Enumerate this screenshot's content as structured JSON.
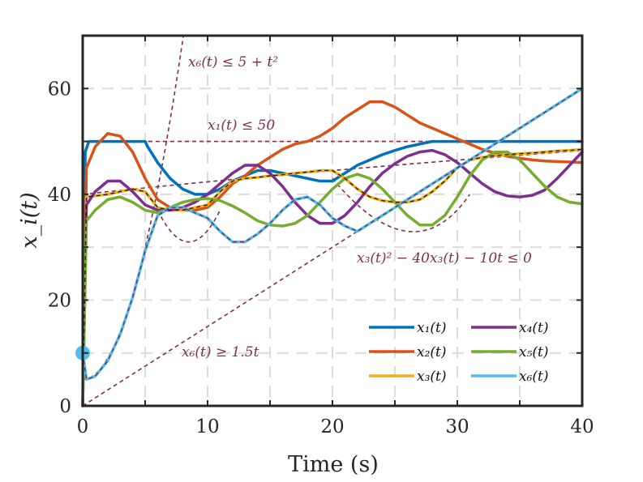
{
  "chart_data": {
    "type": "line",
    "xlabel": "Time (s)",
    "ylabel": "x_i(t)",
    "xlim": [
      0,
      40
    ],
    "ylim": [
      0,
      70
    ],
    "xticks": [
      0,
      10,
      20,
      30,
      40
    ],
    "yticks": [
      0,
      20,
      40,
      60
    ],
    "grid": true,
    "legend_position": "bottom-right",
    "initial_marker": {
      "x": 0,
      "y": 10,
      "color": "#4DBEEE"
    },
    "series": [
      {
        "name": "x₁(t)",
        "color": "#0072BD",
        "x": [
          0,
          0.2,
          0.5,
          1,
          2,
          3,
          4,
          5,
          5.2,
          6,
          7,
          8,
          9,
          10,
          11,
          12,
          13,
          14,
          15,
          16,
          17,
          18,
          19,
          20,
          21,
          22,
          23,
          24,
          25,
          26,
          27,
          28,
          29,
          30,
          31,
          32,
          33,
          34,
          35,
          36,
          37,
          38,
          39,
          40
        ],
        "values": [
          0,
          48,
          50,
          50,
          50,
          50,
          50,
          50,
          49,
          46,
          43,
          41,
          40,
          40,
          41,
          42.5,
          43.5,
          44.5,
          44.5,
          44,
          43.5,
          43,
          42.5,
          42.5,
          44,
          45.5,
          46.5,
          47.5,
          48.3,
          49,
          49.5,
          50,
          50,
          50,
          50,
          50,
          50,
          50,
          50,
          50,
          50,
          50,
          50,
          50
        ]
      },
      {
        "name": "x₂(t)",
        "color": "#D95319",
        "x": [
          0,
          0.3,
          1,
          2,
          3,
          4,
          5,
          6,
          7,
          8,
          9,
          10,
          11,
          12,
          13,
          14,
          15,
          16,
          17,
          18,
          19,
          20,
          21,
          22,
          23,
          24,
          25,
          26,
          27,
          28,
          29,
          30,
          31,
          32,
          33,
          34,
          35,
          36,
          37,
          38,
          39,
          40
        ],
        "values": [
          0,
          45,
          49,
          51.5,
          51,
          48,
          43,
          39,
          37.5,
          37,
          37,
          37.5,
          39.5,
          42,
          43.5,
          45.5,
          47,
          48.5,
          49.5,
          50,
          51,
          52.5,
          54.5,
          56,
          57.5,
          57.5,
          56.5,
          55,
          53.5,
          52.5,
          51.5,
          50.5,
          49.5,
          48.5,
          47.8,
          47.2,
          46.8,
          46.5,
          46.3,
          46.2,
          46.1,
          46
        ]
      },
      {
        "name": "x₃(t)",
        "color": "#EDB120",
        "x": [
          0,
          0.3,
          1,
          2,
          3,
          4,
          5,
          6,
          7,
          8,
          9,
          10,
          11,
          12,
          13,
          14,
          15,
          16,
          17,
          18,
          19,
          20,
          21,
          22,
          23,
          24,
          25,
          26,
          27,
          28,
          29,
          30,
          31,
          32,
          33,
          34,
          35,
          36,
          37,
          38,
          39,
          40
        ],
        "values": [
          0,
          39.5,
          39.7,
          40,
          40.5,
          41,
          40.5,
          37.5,
          37,
          37,
          37.5,
          38,
          40.5,
          42.5,
          43,
          43.2,
          43.5,
          43.7,
          44,
          44.2,
          44.5,
          44.5,
          43,
          41,
          39.5,
          38.8,
          38.5,
          38.5,
          39,
          40.5,
          42.5,
          45,
          46.5,
          47,
          47.3,
          47.5,
          47.7,
          47.8,
          48,
          48.2,
          48.3,
          48.5
        ]
      },
      {
        "name": "x₄(t)",
        "color": "#7E2F8E",
        "x": [
          0,
          0.3,
          1,
          2,
          3,
          4,
          5,
          6,
          7,
          8,
          9,
          10,
          11,
          12,
          13,
          14,
          15,
          16,
          17,
          18,
          19,
          20,
          21,
          22,
          23,
          24,
          25,
          26,
          27,
          28,
          29,
          30,
          31,
          32,
          33,
          34,
          35,
          36,
          37,
          38,
          39,
          40
        ],
        "values": [
          0,
          38,
          40.5,
          42.5,
          42.5,
          40.5,
          38,
          37,
          37,
          37.5,
          38.5,
          40,
          42,
          44,
          45.5,
          45.5,
          44,
          41.5,
          38.5,
          36,
          34.5,
          34.5,
          36,
          38.5,
          41.5,
          44,
          45.8,
          47.2,
          48,
          48.3,
          47.5,
          46,
          44,
          42,
          40.5,
          39.7,
          39.5,
          39.8,
          40.8,
          43,
          45.5,
          48
        ]
      },
      {
        "name": "x₅(t)",
        "color": "#77AC30",
        "x": [
          0,
          0.3,
          1,
          2,
          3,
          4,
          5,
          6,
          7,
          8,
          9,
          10,
          11,
          12,
          13,
          14,
          15,
          16,
          17,
          18,
          19,
          20,
          21,
          22,
          23,
          24,
          25,
          26,
          27,
          28,
          29,
          30,
          31,
          32,
          33,
          34,
          35,
          36,
          37,
          38,
          39,
          40
        ],
        "values": [
          0,
          35,
          37,
          39,
          39.5,
          38.5,
          37,
          36.5,
          37.5,
          38.5,
          39,
          39.2,
          38.8,
          37.8,
          36.5,
          35,
          34.2,
          34,
          34.5,
          36,
          38.5,
          41,
          43,
          43.8,
          43,
          41,
          38.5,
          36,
          34.2,
          34.2,
          36,
          39.5,
          43.5,
          46.5,
          48,
          48,
          46.5,
          44,
          41.5,
          39.5,
          38.5,
          38.2
        ]
      },
      {
        "name": "x₆(t)",
        "color": "#4DBEEE",
        "x": [
          0,
          0.3,
          1,
          2,
          3,
          4,
          5,
          6,
          7,
          8,
          9,
          10,
          11,
          12,
          13,
          14,
          15,
          16,
          17,
          18,
          19,
          20,
          21,
          22,
          23,
          24,
          25,
          26,
          27,
          28,
          29,
          30,
          31,
          32,
          33,
          34,
          35,
          36,
          37,
          38,
          39,
          40
        ],
        "values": [
          10,
          5,
          5.6,
          8.5,
          13.5,
          20.5,
          29.3,
          36,
          37.5,
          37.5,
          36.5,
          35.5,
          33,
          31,
          31,
          32.5,
          34.5,
          37,
          39,
          39.5,
          38,
          35.5,
          34,
          33,
          34.5,
          36,
          37.5,
          39,
          40.5,
          42,
          43.5,
          45,
          46.5,
          48,
          49.5,
          51,
          52.5,
          54,
          55.5,
          57,
          58.5,
          60
        ]
      }
    ],
    "constraints": [
      {
        "label": "x₆(t) ≤ 5 + t²",
        "expr": "5+t^2"
      },
      {
        "label": "x₁(t) ≤ 50",
        "expr": "50"
      },
      {
        "label": "x₃(t)² − 40x₃(t) − 10t ≤ 0",
        "expr": "20-sqrt(400+10t)"
      },
      {
        "label": "x₆(t) ≥ 1.5t",
        "expr": "1.5t"
      }
    ]
  }
}
